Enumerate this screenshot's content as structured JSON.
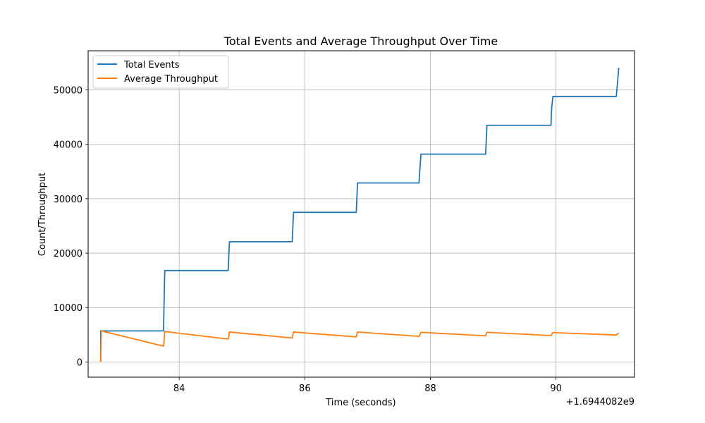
{
  "chart_data": {
    "type": "line",
    "title": "Total Events and Average Throughput Over Time",
    "xlabel": "Time (seconds)",
    "ylabel": "Count/Throughput",
    "x_offset_label": "+1.6944082e9",
    "xlim": [
      82.55,
      91.25
    ],
    "ylim": [
      -2800,
      57200
    ],
    "xticks": [
      84,
      86,
      88,
      90
    ],
    "yticks": [
      0,
      10000,
      20000,
      30000,
      40000,
      50000
    ],
    "grid": true,
    "legend_position": "top-left",
    "series": [
      {
        "name": "Total Events",
        "color": "#1f77b4",
        "x": [
          82.75,
          82.75,
          83.75,
          83.77,
          84.78,
          84.8,
          85.8,
          85.82,
          86.82,
          86.84,
          87.82,
          87.83,
          87.85,
          88.88,
          88.9,
          89.92,
          89.93,
          89.95,
          90.96,
          91.0
        ],
        "y": [
          0,
          5700,
          5700,
          16800,
          16800,
          22100,
          22100,
          27500,
          27500,
          32900,
          32900,
          35000,
          38200,
          38200,
          43500,
          43500,
          46500,
          48800,
          48800,
          54100
        ]
      },
      {
        "name": "Average Throughput",
        "color": "#ff7f0e",
        "x": [
          82.75,
          82.76,
          83.75,
          83.76,
          83.77,
          84.78,
          84.8,
          85.8,
          85.82,
          86.82,
          86.84,
          87.82,
          87.85,
          88.88,
          88.9,
          89.92,
          89.95,
          90.96,
          91.0
        ],
        "y": [
          0,
          5700,
          2900,
          3900,
          5600,
          4200,
          5500,
          4400,
          5500,
          4600,
          5500,
          4700,
          5450,
          4800,
          5450,
          4850,
          5400,
          4950,
          5350
        ]
      }
    ]
  }
}
